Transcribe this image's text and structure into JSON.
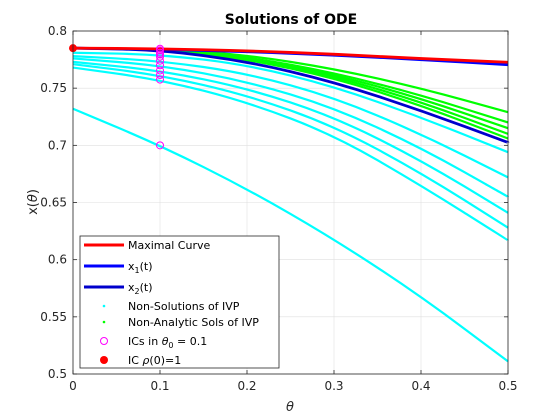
{
  "chart_data": {
    "type": "line",
    "title": "Solutions of ODE",
    "xlabel": "θ",
    "ylabel": "x(θ)",
    "xlim": [
      0,
      0.5
    ],
    "ylim": [
      0.5,
      0.8
    ],
    "x_ticks": [
      0,
      0.1,
      0.2,
      0.3,
      0.4,
      0.5
    ],
    "x_tick_labels": [
      "0",
      "0.1",
      "0.2",
      "0.3",
      "0.4",
      "0.5"
    ],
    "y_ticks": [
      0.5,
      0.55,
      0.6,
      0.65,
      0.7,
      0.75,
      0.8
    ],
    "y_tick_labels": [
      "0.5",
      "0.55",
      "0.6",
      "0.65",
      "0.7",
      "0.75",
      "0.8"
    ],
    "grid": true,
    "legend_location": "bottom-left",
    "legend": [
      {
        "label": "Maximal Curve",
        "marker": "line",
        "color": "#ff0000"
      },
      {
        "label": "x1(t)",
        "marker": "line",
        "color": "#0000ff"
      },
      {
        "label": "x2(t)",
        "marker": "line",
        "color": "#0000cc"
      },
      {
        "label": "Non-Solutions of IVP",
        "marker": "dot",
        "color": "#00ffff"
      },
      {
        "label": "Non-Analytic Sols of IVP",
        "marker": "dot",
        "color": "#00ff00"
      },
      {
        "label": "ICs in θ0 = 0.1",
        "marker": "circle",
        "color": "#ff00ff"
      },
      {
        "label": "IC ρ(0)=1",
        "marker": "filled-circle",
        "color": "#ff0000"
      }
    ],
    "series": [
      {
        "name": "Maximal Curve",
        "color": "#ff0000",
        "x": [
          0,
          0.1,
          0.2,
          0.3,
          0.4,
          0.5
        ],
        "y": [
          0.785,
          0.7845,
          0.7827,
          0.7798,
          0.7758,
          0.7727
        ]
      },
      {
        "name": "x1(t)",
        "color": "#0000ff",
        "x": [
          0,
          0.1,
          0.2,
          0.3,
          0.4,
          0.5
        ],
        "y": [
          0.785,
          0.784,
          0.782,
          0.779,
          0.775,
          0.7705
        ]
      },
      {
        "name": "x2(t)",
        "color": "#0000cc",
        "x": [
          0,
          0.1,
          0.2,
          0.3,
          0.4,
          0.5
        ],
        "y": [
          0.785,
          0.7835,
          0.7735,
          0.7555,
          0.7305,
          0.7025
        ]
      },
      {
        "color": "#00ff00",
        "x": [
          0.1,
          0.2,
          0.3,
          0.4,
          0.5
        ],
        "y": [
          0.7845,
          0.779,
          0.767,
          0.75,
          0.729
        ]
      },
      {
        "color": "#00ff00",
        "x": [
          0.1,
          0.2,
          0.3,
          0.4,
          0.5
        ],
        "y": [
          0.7845,
          0.7775,
          0.7635,
          0.744,
          0.72
        ]
      },
      {
        "color": "#00ff00",
        "x": [
          0.1,
          0.2,
          0.3,
          0.4,
          0.5
        ],
        "y": [
          0.7845,
          0.777,
          0.762,
          0.741,
          0.715
        ]
      },
      {
        "color": "#00ff00",
        "x": [
          0.1,
          0.2,
          0.3,
          0.4,
          0.5
        ],
        "y": [
          0.7845,
          0.7763,
          0.7605,
          0.738,
          0.71
        ]
      },
      {
        "color": "#00ff00",
        "x": [
          0.1,
          0.2,
          0.3,
          0.4,
          0.5
        ],
        "y": [
          0.7845,
          0.7755,
          0.759,
          0.735,
          0.706
        ]
      },
      {
        "color": "#00ffff",
        "x": [
          0,
          0.1,
          0.2,
          0.3,
          0.4,
          0.5
        ],
        "y": [
          0.781,
          0.7795,
          0.7705,
          0.7515,
          0.7245,
          0.694
        ]
      },
      {
        "color": "#00ffff",
        "x": [
          0,
          0.1,
          0.2,
          0.3,
          0.4,
          0.5
        ],
        "y": [
          0.778,
          0.774,
          0.763,
          0.742,
          0.71,
          0.672
        ]
      },
      {
        "color": "#00ffff",
        "x": [
          0,
          0.1,
          0.2,
          0.3,
          0.4,
          0.5
        ],
        "y": [
          0.776,
          0.77,
          0.756,
          0.733,
          0.698,
          0.655
        ]
      },
      {
        "color": "#00ffff",
        "x": [
          0,
          0.1,
          0.2,
          0.3,
          0.4,
          0.5
        ],
        "y": [
          0.773,
          0.7655,
          0.75,
          0.725,
          0.687,
          0.641
        ]
      },
      {
        "color": "#00ffff",
        "x": [
          0,
          0.1,
          0.2,
          0.3,
          0.4,
          0.5
        ],
        "y": [
          0.771,
          0.7615,
          0.744,
          0.717,
          0.676,
          0.628
        ]
      },
      {
        "color": "#00ffff",
        "x": [
          0,
          0.1,
          0.2,
          0.3,
          0.4,
          0.5
        ],
        "y": [
          0.768,
          0.7575,
          0.738,
          0.709,
          0.665,
          0.617
        ]
      },
      {
        "color": "#00ffff",
        "x": [
          0,
          0.1,
          0.2,
          0.3,
          0.4,
          0.5
        ],
        "y": [
          0.732,
          0.7,
          0.662,
          0.618,
          0.568,
          0.511
        ]
      }
    ],
    "initial_conditions": {
      "color": "#ff00ff",
      "x": 0.1,
      "y": [
        0.7845,
        0.7795,
        0.774,
        0.77,
        0.7655,
        0.7615,
        0.7575,
        0.7,
        0.783,
        0.781,
        0.7775
      ]
    },
    "ic_point": {
      "x": 0,
      "y": 0.785,
      "color": "#ff0000"
    }
  }
}
